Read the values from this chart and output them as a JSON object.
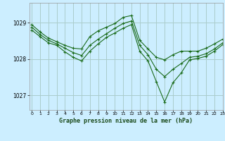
{
  "title": "Graphe pression niveau de la mer (hPa)",
  "background_color": "#cceeff",
  "grid_color": "#aacccc",
  "line_color": "#1a6b1a",
  "xlim": [
    -0.3,
    23
  ],
  "ylim": [
    1026.6,
    1029.55
  ],
  "yticks": [
    1027,
    1028,
    1029
  ],
  "xticks": [
    0,
    1,
    2,
    3,
    4,
    5,
    6,
    7,
    8,
    9,
    10,
    11,
    12,
    13,
    14,
    15,
    16,
    17,
    18,
    19,
    20,
    21,
    22,
    23
  ],
  "series": [
    [
      1028.95,
      1028.75,
      1028.58,
      1028.48,
      1028.38,
      1028.3,
      1028.28,
      1028.62,
      1028.78,
      1028.88,
      1028.98,
      1029.15,
      1029.2,
      1028.52,
      1028.28,
      1028.05,
      1027.98,
      1028.12,
      1028.22,
      1028.22,
      1028.22,
      1028.3,
      1028.42,
      1028.55
    ],
    [
      1028.88,
      1028.68,
      1028.52,
      1028.42,
      1028.3,
      1028.18,
      1028.1,
      1028.38,
      1028.55,
      1028.7,
      1028.85,
      1028.98,
      1029.05,
      1028.38,
      1028.12,
      1027.72,
      1027.52,
      1027.72,
      1027.88,
      1028.05,
      1028.08,
      1028.15,
      1028.28,
      1028.45
    ],
    [
      1028.8,
      1028.62,
      1028.45,
      1028.38,
      1028.2,
      1028.05,
      1027.95,
      1028.22,
      1028.42,
      1028.6,
      1028.72,
      1028.85,
      1028.95,
      1028.22,
      1027.95,
      1027.38,
      1026.82,
      1027.35,
      1027.62,
      1027.98,
      1028.02,
      1028.08,
      1028.22,
      1028.4
    ]
  ]
}
